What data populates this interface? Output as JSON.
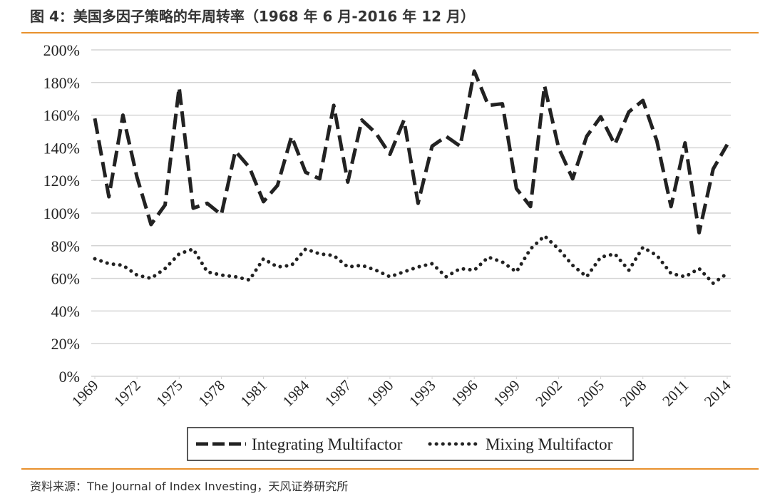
{
  "chart_data": {
    "type": "line",
    "title": "图 4：美国多因子策略的年周转率（1968 年 6 月-2016 年 12 月）",
    "source": "资料来源：The Journal of Index Investing，天风证券研究所",
    "x": [
      1969,
      1970,
      1971,
      1972,
      1973,
      1974,
      1975,
      1976,
      1977,
      1978,
      1979,
      1980,
      1981,
      1982,
      1983,
      1984,
      1985,
      1986,
      1987,
      1988,
      1989,
      1990,
      1991,
      1992,
      1993,
      1994,
      1995,
      1996,
      1997,
      1998,
      1999,
      2000,
      2001,
      2002,
      2003,
      2004,
      2005,
      2006,
      2007,
      2008,
      2009,
      2010,
      2011,
      2012,
      2013,
      2014
    ],
    "xlim": [
      1969,
      2014
    ],
    "xticks": [
      1969,
      1972,
      1975,
      1978,
      1981,
      1984,
      1987,
      1990,
      1993,
      1996,
      1999,
      2002,
      2005,
      2008,
      2011,
      2014
    ],
    "ylim": [
      0,
      200
    ],
    "yticks": [
      {
        "value": 0,
        "label": "0%"
      },
      {
        "value": 20,
        "label": "20%"
      },
      {
        "value": 40,
        "label": "40%"
      },
      {
        "value": 60,
        "label": "60%"
      },
      {
        "value": 80,
        "label": "80%"
      },
      {
        "value": 100,
        "label": "100%"
      },
      {
        "value": 120,
        "label": "120%"
      },
      {
        "value": 140,
        "label": "140%"
      },
      {
        "value": 160,
        "label": "160%"
      },
      {
        "value": 180,
        "label": "180%"
      },
      {
        "value": 200,
        "label": "200%"
      }
    ],
    "grid": true,
    "legend": "bottom",
    "series": [
      {
        "name": "Integrating Multifactor",
        "color": "#222222",
        "style": "dashed",
        "values": [
          158,
          110,
          160,
          122,
          93,
          105,
          177,
          103,
          106,
          99,
          138,
          128,
          107,
          117,
          147,
          125,
          121,
          166,
          119,
          157,
          149,
          136,
          157,
          106,
          141,
          147,
          141,
          187,
          166,
          167,
          115,
          104,
          178,
          140,
          121,
          147,
          159,
          142,
          162,
          169,
          144,
          104,
          143,
          88,
          127,
          142
        ]
      },
      {
        "name": "Mixing Multifactor",
        "color": "#222222",
        "style": "dotted",
        "values": [
          72,
          69,
          68,
          62,
          60,
          66,
          75,
          78,
          64,
          62,
          61,
          59,
          72,
          67,
          68,
          78,
          75,
          74,
          67,
          68,
          65,
          61,
          64,
          67,
          69,
          61,
          66,
          65,
          73,
          70,
          64,
          78,
          86,
          78,
          68,
          61,
          73,
          75,
          65,
          79,
          74,
          63,
          61,
          66,
          57,
          63
        ]
      }
    ]
  }
}
